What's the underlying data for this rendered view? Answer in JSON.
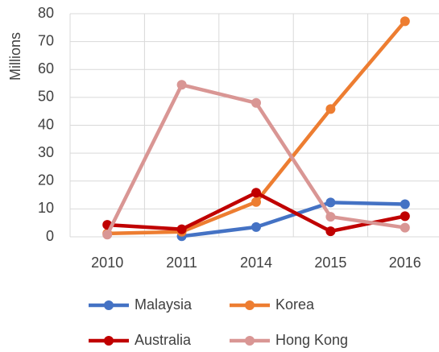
{
  "chart_data": {
    "type": "line",
    "y_label": "Millions",
    "categories": [
      "2010",
      "2011",
      "2014",
      "2015",
      "2016"
    ],
    "series": [
      {
        "name": "Malaysia",
        "color": "#4472c4",
        "values": [
          null,
          0.2,
          3.5,
          12.3,
          11.7
        ]
      },
      {
        "name": "Korea",
        "color": "#ed7d31",
        "values": [
          1.2,
          1.8,
          12.5,
          45.8,
          77.3
        ]
      },
      {
        "name": "Australia",
        "color": "#c00000",
        "values": [
          4.3,
          2.7,
          15.8,
          2.0,
          7.4
        ]
      },
      {
        "name": "Hong Kong",
        "color": "#d99694",
        "values": [
          0.8,
          54.5,
          48,
          7.2,
          3.3
        ]
      }
    ],
    "ylim": [
      0,
      80
    ],
    "yticks": [
      0,
      10,
      20,
      30,
      40,
      50,
      60,
      70,
      80
    ],
    "grid": true,
    "legend": "bottom"
  }
}
